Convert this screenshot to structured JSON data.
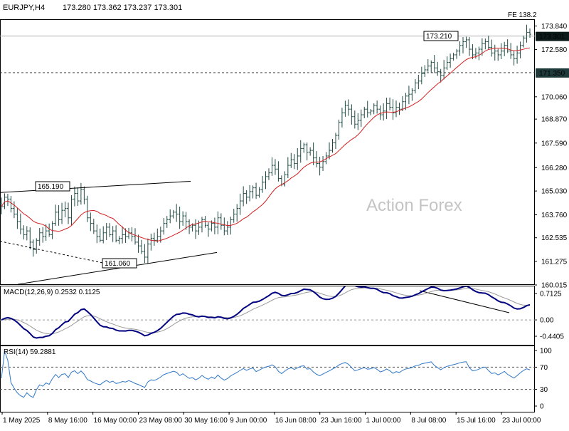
{
  "header": {
    "symbol": "EURJPY,H4",
    "ohlc": "173.280 173.362 173.237 173.301",
    "fe_label": "FE 138.2"
  },
  "watermark": "Action Forex",
  "colors": {
    "price_bar": "#1f4a44",
    "ma_line": "#d21f1f",
    "macd_line": "#000080",
    "macd_signal": "#9a9a9a",
    "rsi_line": "#2f78c8",
    "current_price_tag": "#0d1a1a",
    "level_tag": "#1f3a3a",
    "grid_dashed": "#333333"
  },
  "chart_data": [
    {
      "type": "line",
      "title": "EURJPY,H4",
      "ylim": [
        160.015,
        174.2
      ],
      "y_ticks": [
        "173.840",
        "172.580",
        "171.350",
        "170.060",
        "168.870",
        "167.590",
        "166.280",
        "165.030",
        "163.760",
        "162.535",
        "161.275",
        "160.015"
      ],
      "x_ticks": [
        "1 May 2025",
        "8 May 16:00",
        "16 May 00:00",
        "23 May 08:00",
        "30 May 16:00",
        "9 Jun 00:00",
        "16 Jun 08:00",
        "23 Jun 16:00",
        "1 Jul 00:00",
        "8 Jul 08:00",
        "15 Jul 16:00",
        "23 Jul 00:00"
      ],
      "current_price": "173.301",
      "horizontal_level": "171.350",
      "fib_extension_label": "FE 138.2",
      "annotations": [
        "165.190",
        "161.060",
        "173.210"
      ],
      "series": [
        {
          "role": "price",
          "values": [
            164.2,
            164.7,
            164.6,
            164.1,
            163.8,
            163.4,
            163.0,
            162.7,
            162.9,
            162.3,
            161.9,
            162.4,
            162.8,
            162.6,
            162.9,
            162.7,
            163.3,
            163.9,
            163.5,
            164.0,
            164.1,
            163.6,
            164.6,
            164.9,
            164.5,
            165.1,
            164.6,
            163.6,
            163.3,
            162.9,
            162.6,
            162.4,
            162.8,
            163.1,
            162.7,
            162.9,
            162.4,
            162.5,
            162.7,
            162.6,
            162.8,
            162.6,
            162.3,
            162.1,
            161.8,
            161.5,
            162.2,
            162.5,
            162.4,
            162.6,
            162.9,
            163.3,
            163.5,
            163.7,
            163.9,
            163.8,
            163.4,
            163.7,
            163.4,
            163.1,
            163.2,
            162.9,
            163.1,
            163.5,
            163.2,
            163.0,
            163.3,
            163.1,
            163.6,
            163.2,
            162.9,
            163.1,
            163.5,
            163.8,
            164.1,
            164.5,
            164.9,
            164.7,
            165.0,
            165.2,
            164.8,
            165.1,
            165.5,
            165.8,
            166.0,
            166.4,
            166.2,
            165.7,
            165.4,
            165.9,
            166.4,
            166.7,
            166.5,
            166.9,
            167.3,
            167.5,
            167.1,
            167.2,
            166.8,
            166.5,
            166.3,
            166.6,
            166.9,
            167.2,
            167.6,
            168.0,
            168.7,
            169.2,
            169.6,
            169.4,
            169.0,
            168.6,
            168.8,
            169.1,
            169.4,
            169.2,
            169.3,
            169.6,
            169.4,
            169.1,
            169.3,
            169.7,
            169.5,
            169.2,
            169.5,
            169.4,
            169.8,
            170.1,
            170.2,
            170.4,
            170.8,
            170.9,
            171.3,
            171.5,
            171.7,
            171.9,
            171.6,
            171.4,
            171.2,
            171.6,
            171.9,
            172.1,
            172.3,
            172.5,
            172.8,
            173.0,
            173.1,
            172.6,
            172.3,
            172.4,
            172.6,
            172.9,
            173.0,
            172.7,
            172.4,
            172.5,
            172.3,
            172.5,
            172.8,
            172.5,
            172.3,
            172.1,
            172.4,
            172.8,
            173.2,
            173.5,
            173.4
          ]
        },
        {
          "role": "moving-average",
          "values": []
        }
      ]
    },
    {
      "type": "line",
      "title": "MACD(12,26,9) 0.2532 0.1125",
      "ylim": [
        -0.4405,
        0.7125
      ],
      "y_ticks": [
        "0.7125",
        "0.00",
        "-0.4405"
      ],
      "series": [
        {
          "role": "macd",
          "values": []
        },
        {
          "role": "signal",
          "values": []
        }
      ]
    },
    {
      "type": "line",
      "title": "RSI(14) 59.2881",
      "ylim": [
        0,
        100
      ],
      "y_ticks": [
        "100",
        "70",
        "30",
        "0"
      ],
      "series": [
        {
          "role": "rsi",
          "values": []
        }
      ]
    }
  ]
}
